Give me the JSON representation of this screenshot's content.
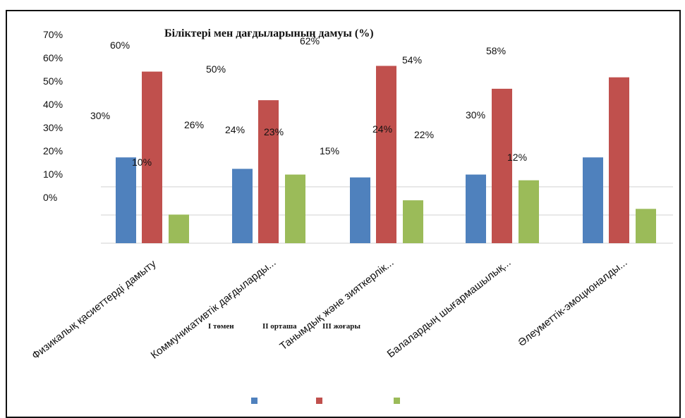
{
  "chart_data": {
    "type": "bar",
    "title": "Біліктері мен дағдыларының дамуы (%)",
    "categories": [
      "Физикалық қасиеттерді дамыту",
      "Коммуникативтік дағдыларды...",
      "Танымдық және зияткерлік...",
      "Балалардың шығармашылық...",
      "Әлеуметтік-эмоционалды..."
    ],
    "series": [
      {
        "name": "I төмен",
        "color": "#4f81bd",
        "values": [
          30,
          26,
          23,
          24,
          30
        ]
      },
      {
        "name": "II орташа",
        "color": "#c0504d",
        "values": [
          60,
          50,
          62,
          54,
          58
        ]
      },
      {
        "name": "III жоғары",
        "color": "#9bbb59",
        "values": [
          10,
          24,
          15,
          22,
          12
        ]
      }
    ],
    "yticks": [
      "70%",
      "60%",
      "50%",
      "40%",
      "30%",
      "20%",
      "10%",
      "0%"
    ],
    "data_labels": [
      "60%",
      "30%",
      "10%",
      "50%",
      "26%",
      "24%",
      "23%",
      "62%",
      "15%",
      "24%",
      "54%",
      "22%",
      "58%",
      "30%",
      "12%"
    ],
    "ylim": [
      0,
      70
    ],
    "grid": true,
    "legend": "bottom"
  }
}
